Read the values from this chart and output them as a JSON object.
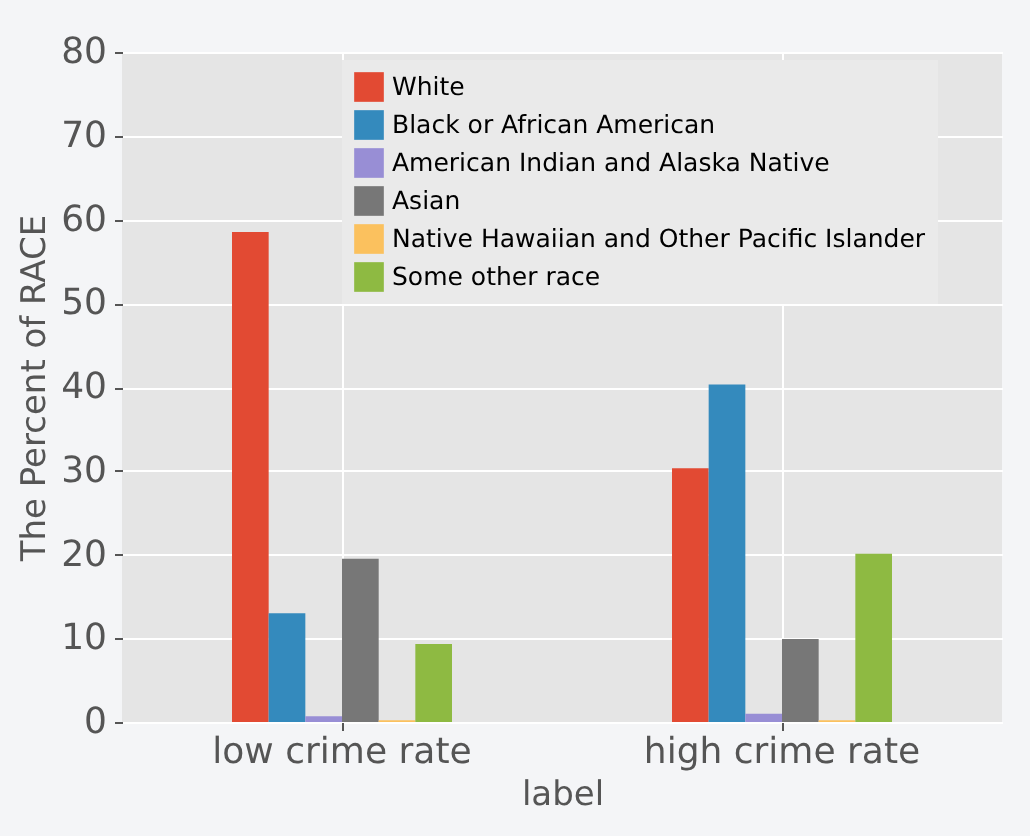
{
  "chart_data": {
    "type": "bar",
    "xlabel": "label",
    "ylabel": "The Percent of RACE",
    "categories": [
      "low crime rate",
      "high crime rate"
    ],
    "series": [
      {
        "name": "White",
        "color": "#e24a33",
        "values": [
          58.5,
          30.3
        ]
      },
      {
        "name": "Black or African American",
        "color": "#348abd",
        "values": [
          13.0,
          40.3
        ]
      },
      {
        "name": "American Indian and Alaska Native",
        "color": "#988ed5",
        "values": [
          0.7,
          1.0
        ]
      },
      {
        "name": "Asian",
        "color": "#777777",
        "values": [
          19.5,
          9.9
        ]
      },
      {
        "name": "Native Hawaiian and Other Pacific Islander",
        "color": "#fbc15e",
        "values": [
          0.2,
          0.2
        ]
      },
      {
        "name": "Some other race",
        "color": "#8eba42",
        "values": [
          9.3,
          20.1
        ]
      }
    ],
    "ylim": [
      0,
      80
    ],
    "yticks": [
      0,
      10,
      20,
      30,
      40,
      50,
      60,
      70,
      80
    ],
    "grid": true,
    "legend": "top"
  }
}
